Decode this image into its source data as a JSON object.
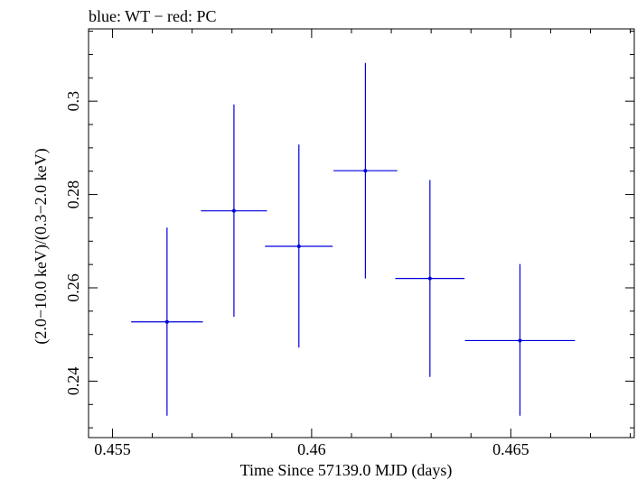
{
  "chart_data": {
    "type": "scatter",
    "title": "blue: WT − red: PC",
    "xlabel": "Time Since 57139.0 MJD (days)",
    "ylabel": "(2.0−10.0 keV)/(0.3−2.0 keV)",
    "xlim": [
      0.4544,
      0.4681
    ],
    "ylim": [
      0.2279,
      0.3155
    ],
    "x_ticks": [
      0.455,
      0.46,
      0.465
    ],
    "x_tick_labels": [
      "0.455",
      "0.46",
      "0.465"
    ],
    "y_ticks": [
      0.24,
      0.26,
      0.28,
      0.3
    ],
    "y_tick_labels": [
      "0.24",
      "0.26",
      "0.28",
      "0.3"
    ],
    "series": [
      {
        "name": "WT",
        "color": "#0000dd",
        "points": [
          {
            "x": 0.45637,
            "xerr": 0.0009,
            "y": 0.2527,
            "ylo": 0.2326,
            "yhi": 0.2729
          },
          {
            "x": 0.45805,
            "xerr": 0.00083,
            "y": 0.2765,
            "ylo": 0.2538,
            "yhi": 0.2993
          },
          {
            "x": 0.45968,
            "xerr": 0.00085,
            "y": 0.2689,
            "ylo": 0.2472,
            "yhi": 0.2907
          },
          {
            "x": 0.46135,
            "xerr": 0.0008,
            "y": 0.2851,
            "ylo": 0.262,
            "yhi": 0.3082
          },
          {
            "x": 0.46297,
            "xerr": 0.00087,
            "y": 0.262,
            "ylo": 0.2409,
            "yhi": 0.2831
          },
          {
            "x": 0.46523,
            "xerr": 0.00138,
            "y": 0.2487,
            "ylo": 0.2326,
            "yhi": 0.2651
          }
        ]
      }
    ]
  }
}
